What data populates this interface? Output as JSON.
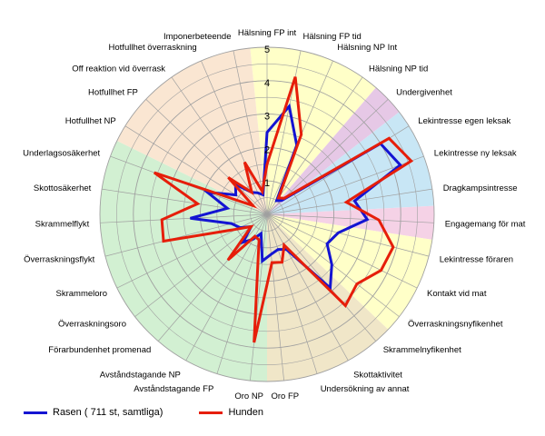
{
  "chart_data": {
    "type": "radar",
    "title": "",
    "rlim": [
      0,
      5
    ],
    "rticks": [
      "1",
      "2",
      "3",
      "4",
      "5"
    ],
    "grid": true,
    "legend_placement": "bottom-left",
    "axes": [
      "Hälsning FP int",
      "Hälsning FP tid",
      "Hälsning NP Int",
      "Hälsning NP tid",
      "Undergivenhet",
      "Lekintresse egen leksak",
      "Lekintresse ny leksak",
      "Dragkampsintresse",
      "Engagemang för mat",
      "Lekintresse föraren",
      "Kontakt vid mat",
      "Överraskningsnyfikenhet",
      "Skrammelnyfikenhet",
      "Skottaktivitet",
      "Undersökning av annat",
      "Oro FP",
      "Oro NP",
      "Avståndstagande FP",
      "Avståndstagande NP",
      "Förarbundenhet promenad",
      "Överraskningsoro",
      "Skrammeloro",
      "Överraskningsflykt",
      "Skrammelflykt",
      "Skottosäkerhet",
      "Underlagsosäkerhet",
      "Hotfullhet NP",
      "Hotfullhet FP",
      "Off reaktion vid överrask",
      "Hotfullhet överraskning",
      "Imponerbeteende"
    ],
    "series": [
      {
        "name": "Rasen ( 711 st, samtliga)",
        "color": "#1414d2",
        "values": [
          2.45,
          3.3,
          2.25,
          0.5,
          0.6,
          4.0,
          4.25,
          2.65,
          3.0,
          2.2,
          2.0,
          2.45,
          2.9,
          1.2,
          1.1,
          1.2,
          1.4,
          0.6,
          0.85,
          1.1,
          0.6,
          0.9,
          1.1,
          2.3,
          1.2,
          1.9,
          1.1,
          1.3,
          0.8,
          0.7,
          0.6
        ]
      },
      {
        "name": "Hunden",
        "color": "#e61e0a",
        "values": [
          1.5,
          4.2,
          2.6,
          0.6,
          0.7,
          4.3,
          4.6,
          2.4,
          3.35,
          3.9,
          3.8,
          3.4,
          3.6,
          1.05,
          1.5,
          1.45,
          3.85,
          0.8,
          0.75,
          1.8,
          0.6,
          1.0,
          3.2,
          3.15,
          2.1,
          3.6,
          0.5,
          1.6,
          0.8,
          1.7,
          0.7
        ]
      }
    ],
    "background_sectors": [
      {
        "from_index": 0,
        "to_index": 3,
        "color": "#ffffc8"
      },
      {
        "from_index": 4,
        "to_index": 4,
        "color": "#e6c8e6"
      },
      {
        "from_index": 5,
        "to_index": 7,
        "color": "#c8e6f5"
      },
      {
        "from_index": 8,
        "to_index": 8,
        "color": "#f5d2e6"
      },
      {
        "from_index": 9,
        "to_index": 11,
        "color": "#ffffc8"
      },
      {
        "from_index": 12,
        "to_index": 15,
        "color": "#f0e6c8"
      },
      {
        "from_index": 16,
        "to_index": 25,
        "color": "#d2f0d2"
      },
      {
        "from_index": 26,
        "to_index": 30,
        "color": "#fae6d2"
      }
    ],
    "grid_color": "#a0a0a0",
    "series_line_width": 3
  }
}
